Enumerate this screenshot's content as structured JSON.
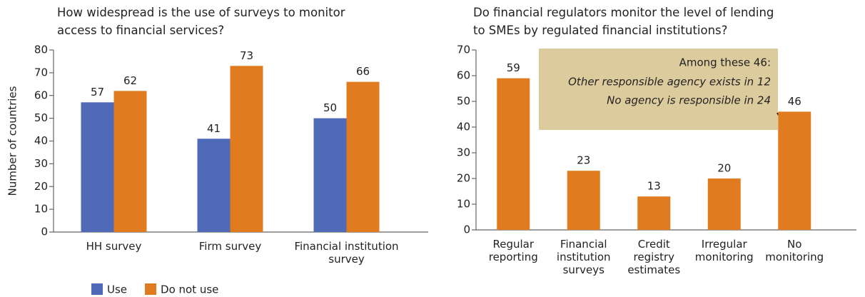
{
  "chart_data": [
    {
      "type": "bar",
      "title": "How widespread is the use of surveys to monitor access to financial services?",
      "y_label": "Number of countries",
      "categories": [
        "HH survey",
        "Firm survey",
        "Financial institution survey"
      ],
      "series": [
        {
          "name": "Use",
          "color": "#4f6bb8",
          "values": [
            57,
            41,
            50
          ]
        },
        {
          "name": "Do not use",
          "color": "#e07b1f",
          "values": [
            62,
            73,
            66
          ]
        }
      ],
      "ylim": [
        0,
        80
      ],
      "yticks": [
        0,
        10,
        20,
        30,
        40,
        50,
        60,
        70,
        80
      ]
    },
    {
      "type": "bar",
      "title": "Do financial regulators monitor the level of lending to SMEs by regulated financial institutions?",
      "categories": [
        "Regular reporting",
        "Financial institution surveys",
        "Credit registry estimates",
        "Irregular monitoring",
        "No monitoring"
      ],
      "values": [
        59,
        23,
        13,
        20,
        46
      ],
      "color": "#e07b1f",
      "ylim": [
        0,
        70
      ],
      "yticks": [
        0,
        10,
        20,
        30,
        40,
        50,
        60,
        70
      ],
      "annotation": {
        "heading": "Among these 46:",
        "lines": [
          "Other responsible agency exists in 12",
          "No agency is responsible in 24"
        ]
      }
    }
  ]
}
